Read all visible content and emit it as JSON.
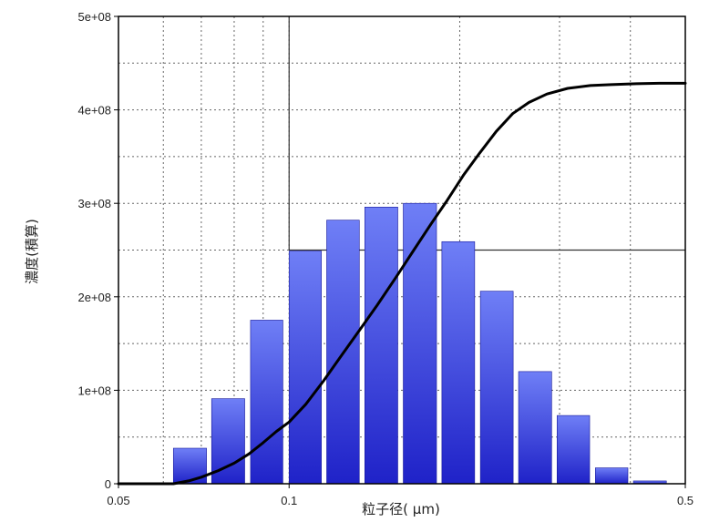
{
  "chart_data": {
    "type": "bar",
    "xlabel": "粒子径( μm)",
    "ylabel": "濃度(積算)",
    "x_scale": "log",
    "xlim": [
      0.05,
      0.5
    ],
    "ylim": [
      0,
      500000000
    ],
    "grid": true,
    "x_ticks": [
      {
        "value": 0.05,
        "label": "0.05"
      },
      {
        "value": 0.1,
        "label": "0.1"
      },
      {
        "value": 0.5,
        "label": "0.5"
      }
    ],
    "y_ticks": [
      {
        "value": 0,
        "label": "0"
      },
      {
        "value": 100000000,
        "label": "1e+08"
      },
      {
        "value": 200000000,
        "label": "2e+08"
      },
      {
        "value": 300000000,
        "label": "3e+08"
      },
      {
        "value": 400000000,
        "label": "4e+08"
      },
      {
        "value": 500000000,
        "label": "5e+08"
      }
    ],
    "reference_lines": [
      {
        "orientation": "vertical",
        "x": 0.1,
        "from_y": 250000000,
        "to_y": 500000000
      },
      {
        "orientation": "horizontal",
        "y": 250000000,
        "from_x": 0.1,
        "to_x": 0.5
      }
    ],
    "bars": [
      {
        "x_start": 0.0625,
        "x_end": 0.0715,
        "value": 38000000
      },
      {
        "x_start": 0.073,
        "x_end": 0.0835,
        "value": 91000000
      },
      {
        "x_start": 0.0855,
        "x_end": 0.0975,
        "value": 175000000
      },
      {
        "x_start": 0.1,
        "x_end": 0.114,
        "value": 249000000
      },
      {
        "x_start": 0.1165,
        "x_end": 0.133,
        "value": 282000000
      },
      {
        "x_start": 0.136,
        "x_end": 0.1555,
        "value": 296000000
      },
      {
        "x_start": 0.159,
        "x_end": 0.182,
        "value": 300000000
      },
      {
        "x_start": 0.186,
        "x_end": 0.2125,
        "value": 259000000
      },
      {
        "x_start": 0.2175,
        "x_end": 0.2485,
        "value": 206000000
      },
      {
        "x_start": 0.254,
        "x_end": 0.2905,
        "value": 120000000
      },
      {
        "x_start": 0.297,
        "x_end": 0.339,
        "value": 73000000
      },
      {
        "x_start": 0.347,
        "x_end": 0.396,
        "value": 17000000
      },
      {
        "x_start": 0.405,
        "x_end": 0.463,
        "value": 3000000
      }
    ],
    "cumulative_curve": {
      "x": [
        0.05,
        0.058,
        0.0625,
        0.0665,
        0.07,
        0.075,
        0.08,
        0.085,
        0.09,
        0.095,
        0.1,
        0.107,
        0.115,
        0.124,
        0.133,
        0.143,
        0.154,
        0.166,
        0.178,
        0.19,
        0.203,
        0.217,
        0.232,
        0.248,
        0.265,
        0.285,
        0.31,
        0.34,
        0.37,
        0.41,
        0.45,
        0.5
      ],
      "y": [
        0,
        0,
        0,
        3000000,
        7000000,
        14000000,
        22000000,
        32000000,
        44000000,
        56000000,
        66000000,
        85000000,
        110000000,
        138000000,
        164000000,
        191000000,
        220000000,
        250000000,
        278000000,
        303000000,
        330000000,
        354000000,
        377000000,
        396000000,
        408000000,
        417000000,
        423000000,
        426000000,
        427000000,
        428000000,
        428500000,
        428500000
      ]
    },
    "colors": {
      "bar_top": "#6f7ff6",
      "bar_bottom": "#1f22c8",
      "curve": "#000000",
      "grid": "#666666",
      "reference": "#333333"
    }
  }
}
